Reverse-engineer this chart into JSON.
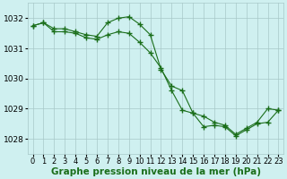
{
  "series1_x": [
    0,
    1,
    2,
    3,
    4,
    5,
    6,
    7,
    8,
    9,
    10,
    11,
    12,
    13,
    14,
    15,
    16,
    17,
    18,
    19,
    20,
    21,
    22,
    23
  ],
  "series1_y": [
    1031.75,
    1031.85,
    1031.65,
    1031.65,
    1031.55,
    1031.45,
    1031.4,
    1031.85,
    1032.0,
    1032.05,
    1031.8,
    1031.45,
    1030.3,
    1029.75,
    1029.6,
    1028.85,
    1028.75,
    1028.55,
    1028.45,
    1028.15,
    1028.35,
    1028.55,
    1029.0,
    1028.95
  ],
  "series2_x": [
    0,
    1,
    2,
    3,
    4,
    5,
    6,
    7,
    8,
    9,
    10,
    11,
    12,
    13,
    14,
    15,
    16,
    17,
    18,
    19,
    20,
    21,
    22,
    23
  ],
  "series2_y": [
    1031.75,
    1031.85,
    1031.55,
    1031.55,
    1031.5,
    1031.35,
    1031.3,
    1031.45,
    1031.55,
    1031.5,
    1031.2,
    1030.85,
    1030.35,
    1029.6,
    1028.95,
    1028.85,
    1028.4,
    1028.45,
    1028.4,
    1028.1,
    1028.3,
    1028.5,
    1028.55,
    1028.95
  ],
  "line_color": "#1a6e1a",
  "bg_color": "#cff0f0",
  "grid_color": "#a8c8c8",
  "xlabel": "Graphe pression niveau de la mer (hPa)",
  "ylim": [
    1027.5,
    1032.5
  ],
  "xlim": [
    -0.5,
    23.5
  ],
  "yticks": [
    1028,
    1029,
    1030,
    1031,
    1032
  ],
  "xtick_labels": [
    "0",
    "1",
    "2",
    "3",
    "4",
    "5",
    "6",
    "7",
    "8",
    "9",
    "10",
    "11",
    "12",
    "13",
    "14",
    "15",
    "16",
    "17",
    "18",
    "19",
    "20",
    "21",
    "22",
    "23"
  ],
  "marker": "+",
  "markersize": 4,
  "linewidth": 0.8,
  "xlabel_fontsize": 7.5,
  "tick_fontsize": 6.0,
  "ytick_fontsize": 6.5
}
